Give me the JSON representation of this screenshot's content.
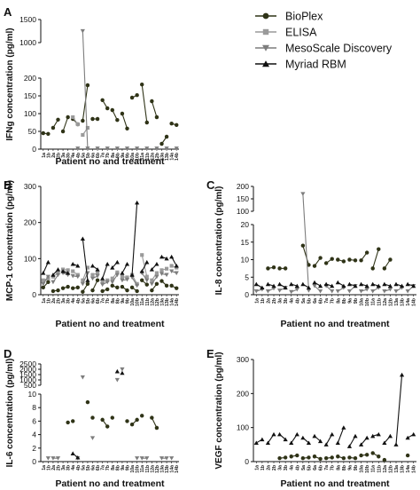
{
  "legend": {
    "position": "top-right",
    "entries": [
      {
        "name": "BioPlex",
        "marker": "circle",
        "color": "#2f3317"
      },
      {
        "name": "ELISA",
        "marker": "square",
        "color": "#9a9a9a"
      },
      {
        "name": "MesoScale Discovery",
        "marker": "triangle-down",
        "color": "#7d7d7d"
      },
      {
        "name": "Myriad RBM",
        "marker": "triangle-up",
        "color": "#111111"
      }
    ]
  },
  "x_tick_labels": [
    "1a",
    "1b",
    "2a",
    "2b",
    "3a",
    "3b",
    "4a",
    "4b",
    "5a",
    "5b",
    "6a",
    "6b",
    "7a",
    "7b",
    "8a",
    "8b",
    "9a",
    "9b",
    "10a",
    "10b",
    "11a",
    "11b",
    "12a",
    "12b",
    "13a",
    "13b",
    "14a",
    "14b"
  ],
  "chart_data": [
    {
      "panel": "A",
      "type": "scatter",
      "xlabel": "Patient no and treatment",
      "ylabel": "IFNg concentration (pg/ml)",
      "y_axis_broken": true,
      "y_segments": [
        {
          "range": [
            0,
            200
          ],
          "ticks": [
            "0",
            "50",
            "100",
            "150",
            "200"
          ]
        },
        {
          "range": [
            1000,
            1500
          ],
          "ticks": [
            "1000",
            "1500"
          ]
        }
      ],
      "series": [
        {
          "name": "BioPlex",
          "x_index": [
            0,
            1,
            2,
            3,
            4,
            5,
            6,
            7,
            8,
            9,
            10,
            11,
            12,
            13,
            14,
            15,
            16,
            17,
            18,
            19,
            20,
            21,
            22,
            23,
            24,
            25,
            26,
            27
          ],
          "values": [
            45,
            43,
            60,
            83,
            50,
            90,
            85,
            70,
            80,
            180,
            85,
            85,
            138,
            115,
            110,
            82,
            100,
            58,
            145,
            152,
            182,
            75,
            135,
            90,
            15,
            35,
            72,
            68
          ]
        },
        {
          "name": "ELISA",
          "x_index": [
            6,
            7,
            8,
            9
          ],
          "values": [
            90,
            70,
            40,
            60
          ]
        },
        {
          "name": "MesoScale Discovery",
          "x_index": [
            7,
            8,
            9,
            11,
            13,
            15,
            17,
            19,
            21,
            23,
            25,
            27
          ],
          "values": [
            2,
            1250,
            2,
            2,
            2,
            2,
            2,
            2,
            2,
            2,
            2,
            2
          ]
        }
      ]
    },
    {
      "panel": "B",
      "type": "scatter",
      "xlabel": "Patient no and treatment",
      "ylabel": "MCP-1 concentration (pg/ml)",
      "ylim": [
        0,
        300
      ],
      "y_ticks": [
        "0",
        "100",
        "200",
        "300"
      ],
      "series": [
        {
          "name": "BioPlex",
          "x_index": [
            0,
            1,
            2,
            3,
            4,
            5,
            6,
            7,
            8,
            9,
            10,
            11,
            12,
            13,
            14,
            15,
            16,
            17,
            18,
            19,
            20,
            21,
            22,
            23,
            24,
            25,
            26,
            27
          ],
          "values": [
            20,
            35,
            10,
            12,
            18,
            22,
            18,
            20,
            8,
            30,
            12,
            40,
            10,
            15,
            25,
            20,
            22,
            12,
            20,
            10,
            40,
            28,
            12,
            30,
            38,
            25,
            25,
            18
          ]
        },
        {
          "name": "ELISA",
          "x_index": [
            0,
            1,
            2,
            3,
            4,
            5,
            6,
            7,
            8,
            9,
            10,
            11,
            12,
            13,
            14,
            15,
            16,
            17,
            18,
            19,
            20,
            21,
            22,
            23,
            24,
            25,
            26,
            27
          ],
          "values": [
            40,
            45,
            50,
            60,
            70,
            68,
            65,
            55,
            40,
            75,
            55,
            60,
            35,
            40,
            45,
            62,
            50,
            48,
            55,
            30,
            110,
            50,
            40,
            60,
            68,
            72,
            80,
            75
          ]
        },
        {
          "name": "MesoScale Discovery",
          "x_index": [
            0,
            1,
            2,
            3,
            4,
            5,
            6,
            7,
            8,
            9,
            10,
            11,
            12,
            13,
            14,
            15,
            16,
            17,
            18,
            19,
            20,
            21,
            22,
            23,
            24,
            25,
            26,
            27
          ],
          "values": [
            30,
            50,
            35,
            55,
            60,
            55,
            52,
            50,
            30,
            60,
            45,
            52,
            28,
            35,
            35,
            55,
            40,
            42,
            48,
            25,
            60,
            40,
            30,
            50,
            58,
            55,
            65,
            60
          ]
        },
        {
          "name": "Myriad RBM",
          "x_index": [
            0,
            1,
            2,
            3,
            4,
            5,
            6,
            7,
            8,
            9,
            10,
            11,
            12,
            13,
            14,
            15,
            16,
            17,
            18,
            19,
            20,
            21,
            22,
            23,
            24,
            25,
            26,
            27
          ],
          "values": [
            60,
            90,
            55,
            70,
            65,
            60,
            85,
            80,
            155,
            40,
            80,
            70,
            45,
            85,
            75,
            90,
            60,
            85,
            55,
            255,
            65,
            90,
            70,
            85,
            105,
            100,
            105,
            80
          ]
        }
      ]
    },
    {
      "panel": "C",
      "type": "scatter",
      "xlabel": "Patient no and treatment",
      "ylabel": "IL-8 concentration (pg/ml)",
      "y_axis_broken": true,
      "y_segments": [
        {
          "range": [
            0,
            20
          ],
          "ticks": [
            "0",
            "5",
            "10",
            "15",
            "20"
          ]
        },
        {
          "range": [
            100,
            200
          ],
          "ticks": [
            "100",
            "150",
            "200"
          ]
        }
      ],
      "series": [
        {
          "name": "BioPlex",
          "x_index": [
            2,
            3,
            4,
            5,
            8,
            9,
            10,
            11,
            12,
            13,
            14,
            15,
            16,
            17,
            18,
            19,
            20,
            21,
            22,
            23
          ],
          "values": [
            7.5,
            7.8,
            7.5,
            7.5,
            14,
            8.5,
            8.2,
            10.5,
            9,
            10.2,
            10,
            9.5,
            10,
            9.8,
            9.8,
            12,
            7.5,
            13,
            7.5,
            10
          ]
        },
        {
          "name": "MesoScale Discovery",
          "x_index": [
            0,
            1,
            2,
            3,
            4,
            5,
            6,
            7,
            8,
            9,
            10,
            11,
            12,
            13,
            14,
            15,
            16,
            17,
            18,
            19,
            20,
            21,
            22,
            23,
            24,
            25,
            26,
            27
          ],
          "values": [
            1,
            1.5,
            1,
            1.8,
            1.2,
            2,
            0.8,
            1.5,
            170,
            1.2,
            2.5,
            1,
            2.5,
            1,
            1,
            2,
            1,
            2.5,
            1,
            1.5,
            1,
            2,
            1,
            1.5,
            1,
            2,
            1,
            2.5
          ]
        },
        {
          "name": "Myriad RBM",
          "x_index": [
            0,
            1,
            2,
            3,
            4,
            5,
            6,
            7,
            8,
            9,
            10,
            11,
            12,
            13,
            14,
            15,
            16,
            17,
            18,
            19,
            20,
            21,
            22,
            23,
            24,
            25,
            26,
            27
          ],
          "values": [
            3,
            2,
            3,
            2.5,
            3,
            2,
            3,
            2.5,
            3,
            2,
            3.5,
            2.5,
            3,
            2.5,
            3.5,
            2.5,
            3,
            2.5,
            3,
            2.5,
            3,
            2.5,
            3,
            2.5,
            3,
            2.5,
            3,
            2.5
          ]
        }
      ]
    },
    {
      "panel": "D",
      "type": "scatter",
      "xlabel": "Patient no and treatment",
      "ylabel": "IL-6 concentration (pg/ml)",
      "y_axis_broken": true,
      "y_segments": [
        {
          "range": [
            0,
            10
          ],
          "ticks": [
            "0",
            "2",
            "4",
            "6",
            "8",
            "10"
          ]
        },
        {
          "range": [
            500,
            2500
          ],
          "ticks": [
            "500",
            "1000",
            "1500",
            "2000",
            "2500"
          ]
        }
      ],
      "series": [
        {
          "name": "BioPlex",
          "x_index": [
            5,
            6,
            9,
            10,
            12,
            13,
            14,
            17,
            18,
            19,
            20,
            22,
            23
          ],
          "values": [
            5.8,
            6.0,
            8.8,
            6.5,
            6.2,
            5.2,
            6.5,
            6.0,
            5.5,
            6.2,
            6.8,
            6.5,
            5.0
          ]
        },
        {
          "name": "MesoScale Discovery",
          "x_index": [
            1,
            2,
            3,
            7,
            8,
            10,
            15,
            16,
            19,
            20,
            21,
            24,
            25,
            26
          ],
          "values": [
            0.5,
            0.5,
            0.5,
            0.5,
            1250,
            3.5,
            1000,
            2000,
            0.5,
            0.5,
            0.5,
            0.5,
            0.5,
            0.5
          ]
        },
        {
          "name": "Myriad RBM",
          "x_index": [
            6,
            7,
            15,
            16
          ],
          "values": [
            1.2,
            0.6,
            1800,
            1650
          ]
        }
      ]
    },
    {
      "panel": "E",
      "type": "scatter",
      "xlabel": "Patient no and treatment",
      "ylabel": "VEGF concentration (pg/ml)",
      "ylim": [
        0,
        300
      ],
      "y_ticks": [
        "0",
        "100",
        "200",
        "300"
      ],
      "series": [
        {
          "name": "BioPlex",
          "x_index": [
            4,
            5,
            6,
            7,
            8,
            9,
            10,
            11,
            12,
            13,
            14,
            15,
            16,
            17,
            18,
            19,
            20,
            21,
            22,
            26
          ],
          "values": [
            10,
            12,
            15,
            18,
            10,
            12,
            15,
            8,
            10,
            12,
            15,
            10,
            12,
            10,
            18,
            20,
            25,
            15,
            5,
            18
          ]
        },
        {
          "name": "Myriad RBM",
          "x_index": [
            0,
            1,
            2,
            3,
            4,
            5,
            6,
            7,
            8,
            9,
            10,
            11,
            12,
            13,
            14,
            15,
            16,
            17,
            18,
            19,
            20,
            21,
            22,
            23,
            24,
            25,
            26,
            27
          ],
          "values": [
            55,
            65,
            55,
            80,
            80,
            65,
            55,
            80,
            70,
            55,
            75,
            60,
            50,
            80,
            55,
            100,
            45,
            75,
            50,
            70,
            75,
            80,
            55,
            75,
            50,
            255,
            70,
            80
          ]
        }
      ]
    }
  ]
}
